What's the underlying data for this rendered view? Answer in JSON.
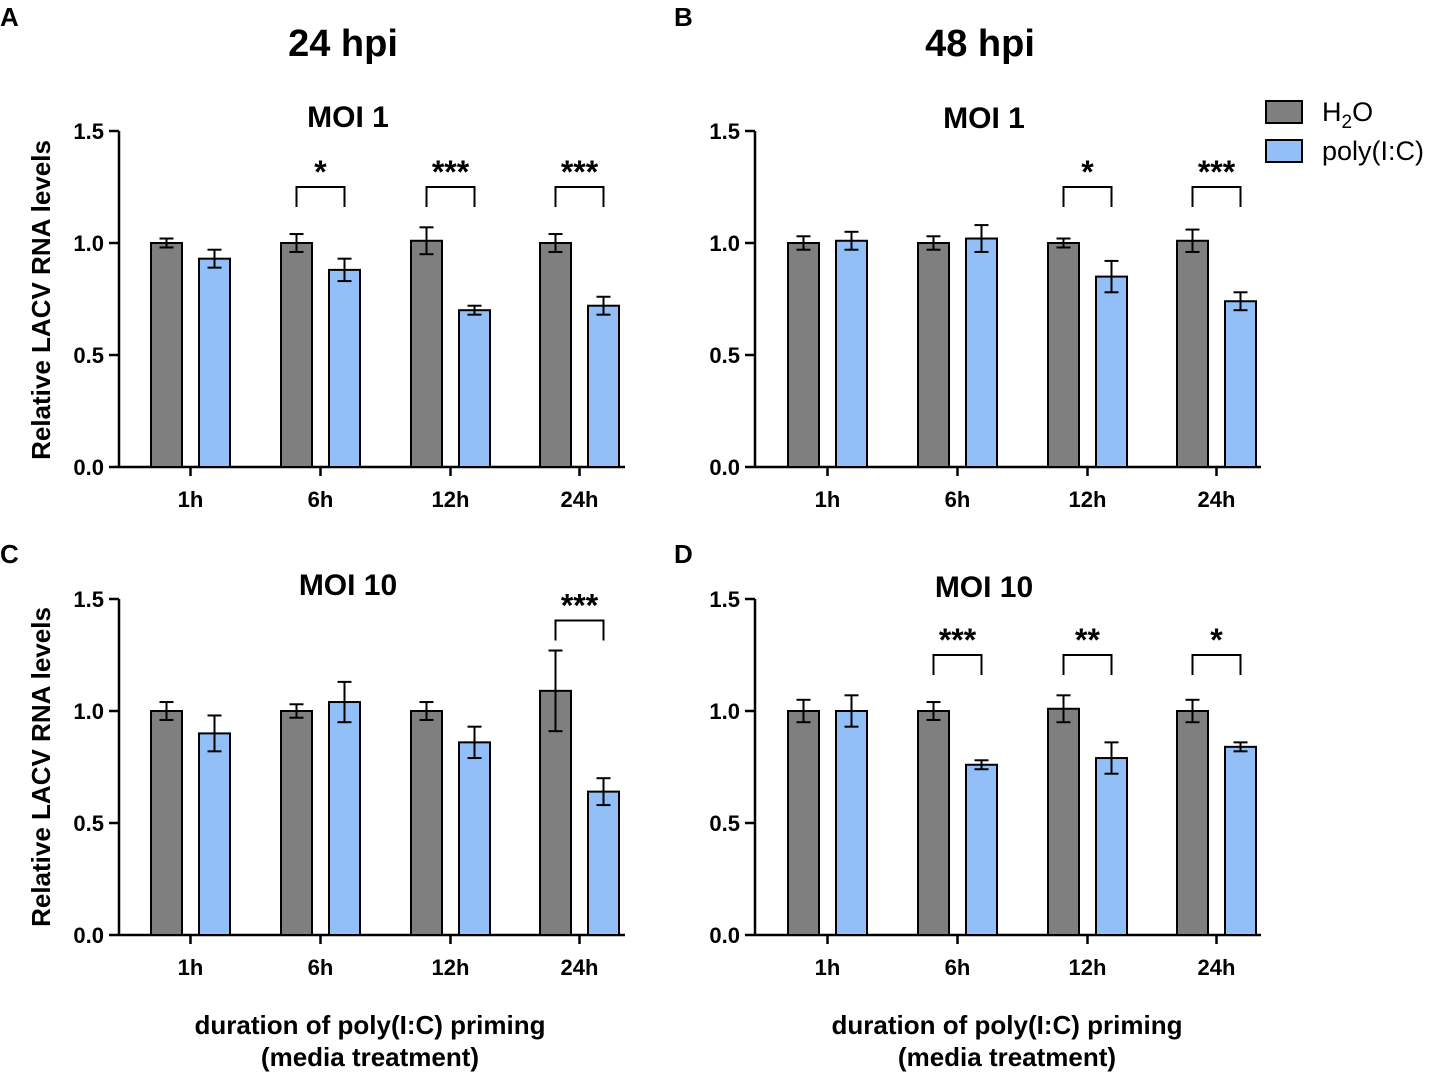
{
  "figure": {
    "column_titles": [
      "24 hpi",
      "48 hpi"
    ],
    "ylabel": "Relative LACV RNA levels",
    "xlabel_line1": "duration of poly(I:C) priming",
    "xlabel_line2": "(media treatment)",
    "legend": {
      "h2o_base": "H",
      "h2o_sub": "2",
      "h2o_tail": "O",
      "polyic": "poly(I:C)"
    },
    "colors": {
      "h2o": "#7f7f7f",
      "polyic": "#93bff9",
      "stroke": "#000000"
    }
  },
  "chart_data": [
    {
      "type": "bar",
      "letter": "A",
      "title": "MOI 1",
      "hpi": "24 hpi",
      "categories": [
        "1h",
        "6h",
        "12h",
        "24h"
      ],
      "ylim": [
        0,
        1.5
      ],
      "yticks": [
        "0.0",
        "0.5",
        "1.0",
        "1.5"
      ],
      "series": [
        {
          "name": "H2O",
          "values": [
            1.0,
            1.0,
            1.01,
            1.0
          ],
          "errors": [
            0.02,
            0.04,
            0.06,
            0.04
          ]
        },
        {
          "name": "poly(I:C)",
          "values": [
            0.93,
            0.88,
            0.7,
            0.72
          ],
          "errors": [
            0.04,
            0.05,
            0.02,
            0.04
          ]
        }
      ],
      "significance": [
        {
          "category": "6h",
          "label": "*"
        },
        {
          "category": "12h",
          "label": "***"
        },
        {
          "category": "24h",
          "label": "***"
        }
      ]
    },
    {
      "type": "bar",
      "letter": "B",
      "title": "MOI 1",
      "hpi": "48 hpi",
      "categories": [
        "1h",
        "6h",
        "12h",
        "24h"
      ],
      "ylim": [
        0,
        1.5
      ],
      "yticks": [
        "0.0",
        "0.5",
        "1.0",
        "1.5"
      ],
      "series": [
        {
          "name": "H2O",
          "values": [
            1.0,
            1.0,
            1.0,
            1.01
          ],
          "errors": [
            0.03,
            0.03,
            0.02,
            0.05
          ]
        },
        {
          "name": "poly(I:C)",
          "values": [
            1.01,
            1.02,
            0.85,
            0.74
          ],
          "errors": [
            0.04,
            0.06,
            0.07,
            0.04
          ]
        }
      ],
      "significance": [
        {
          "category": "12h",
          "label": "*"
        },
        {
          "category": "24h",
          "label": "***"
        }
      ]
    },
    {
      "type": "bar",
      "letter": "C",
      "title": "MOI 10",
      "hpi": "24 hpi",
      "categories": [
        "1h",
        "6h",
        "12h",
        "24h"
      ],
      "ylim": [
        0,
        1.5
      ],
      "yticks": [
        "0.0",
        "0.5",
        "1.0",
        "1.5"
      ],
      "series": [
        {
          "name": "H2O",
          "values": [
            1.0,
            1.0,
            1.0,
            1.09
          ],
          "errors": [
            0.04,
            0.03,
            0.04,
            0.18
          ]
        },
        {
          "name": "poly(I:C)",
          "values": [
            0.9,
            1.04,
            0.86,
            0.64
          ],
          "errors": [
            0.08,
            0.09,
            0.07,
            0.06
          ]
        }
      ],
      "significance": [
        {
          "category": "24h",
          "label": "***"
        }
      ]
    },
    {
      "type": "bar",
      "letter": "D",
      "title": "MOI 10",
      "hpi": "48 hpi",
      "categories": [
        "1h",
        "6h",
        "12h",
        "24h"
      ],
      "ylim": [
        0,
        1.5
      ],
      "yticks": [
        "0.0",
        "0.5",
        "1.0",
        "1.5"
      ],
      "series": [
        {
          "name": "H2O",
          "values": [
            1.0,
            1.0,
            1.01,
            1.0
          ],
          "errors": [
            0.05,
            0.04,
            0.06,
            0.05
          ]
        },
        {
          "name": "poly(I:C)",
          "values": [
            1.0,
            0.76,
            0.79,
            0.84
          ],
          "errors": [
            0.07,
            0.02,
            0.07,
            0.02
          ]
        }
      ],
      "significance": [
        {
          "category": "6h",
          "label": "***"
        },
        {
          "category": "12h",
          "label": "**"
        },
        {
          "category": "24h",
          "label": "*"
        }
      ]
    }
  ]
}
